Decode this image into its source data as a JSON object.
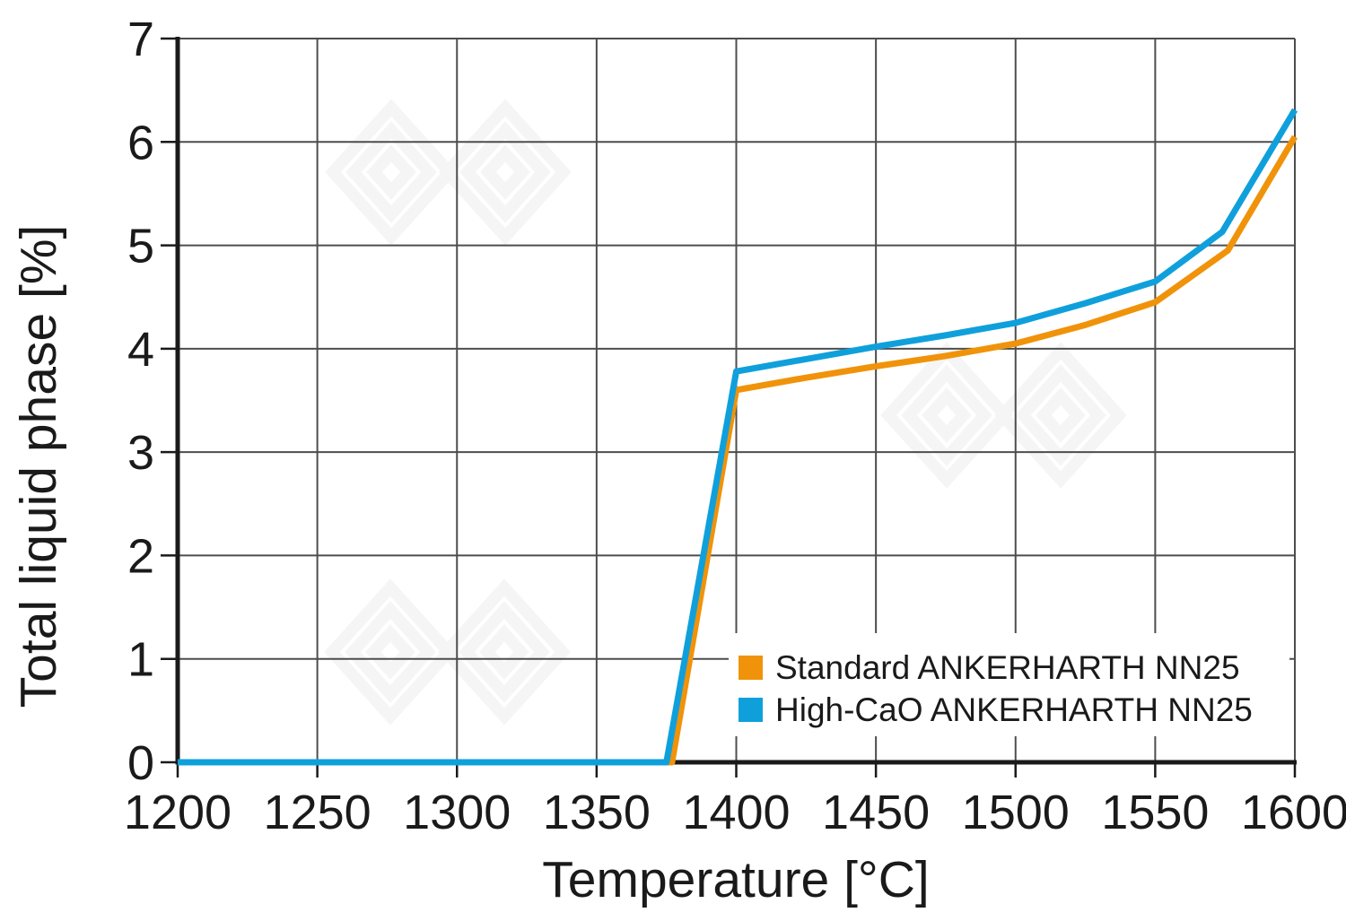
{
  "chart_data": {
    "type": "line",
    "title": "",
    "xlabel": "Temperature [°C]",
    "ylabel": "Total liquid phase [%]",
    "xlim": [
      1200,
      1600
    ],
    "ylim": [
      0,
      7
    ],
    "xticks": [
      1200,
      1250,
      1300,
      1350,
      1400,
      1450,
      1500,
      1550,
      1600
    ],
    "yticks": [
      0,
      1,
      2,
      3,
      4,
      5,
      6,
      7
    ],
    "grid": true,
    "legend_position": "inside-bottom-right",
    "series": [
      {
        "name": "Standard ANKERHARTH NN25",
        "color": "#F0930A",
        "points": [
          [
            1200,
            0
          ],
          [
            1377,
            0
          ],
          [
            1400,
            3.6
          ],
          [
            1425,
            3.72
          ],
          [
            1450,
            3.83
          ],
          [
            1475,
            3.93
          ],
          [
            1500,
            4.05
          ],
          [
            1525,
            4.23
          ],
          [
            1550,
            4.45
          ],
          [
            1576,
            4.95
          ],
          [
            1600,
            6.05
          ]
        ]
      },
      {
        "name": "High-CaO ANKERHARTH NN25",
        "color": "#0FA0DC",
        "points": [
          [
            1200,
            0
          ],
          [
            1375,
            0
          ],
          [
            1400,
            3.78
          ],
          [
            1425,
            3.9
          ],
          [
            1450,
            4.02
          ],
          [
            1475,
            4.13
          ],
          [
            1500,
            4.25
          ],
          [
            1525,
            4.44
          ],
          [
            1550,
            4.65
          ],
          [
            1574,
            5.13
          ],
          [
            1600,
            6.31
          ]
        ]
      }
    ]
  },
  "watermark": {
    "name": "rhi-magnesita-logo-watermark",
    "color": "#f5f5f5"
  },
  "colors": {
    "background": "#ffffff",
    "grid": "#4d4d4d",
    "axis": "#1a1a1a",
    "text": "#1a1a1a"
  }
}
